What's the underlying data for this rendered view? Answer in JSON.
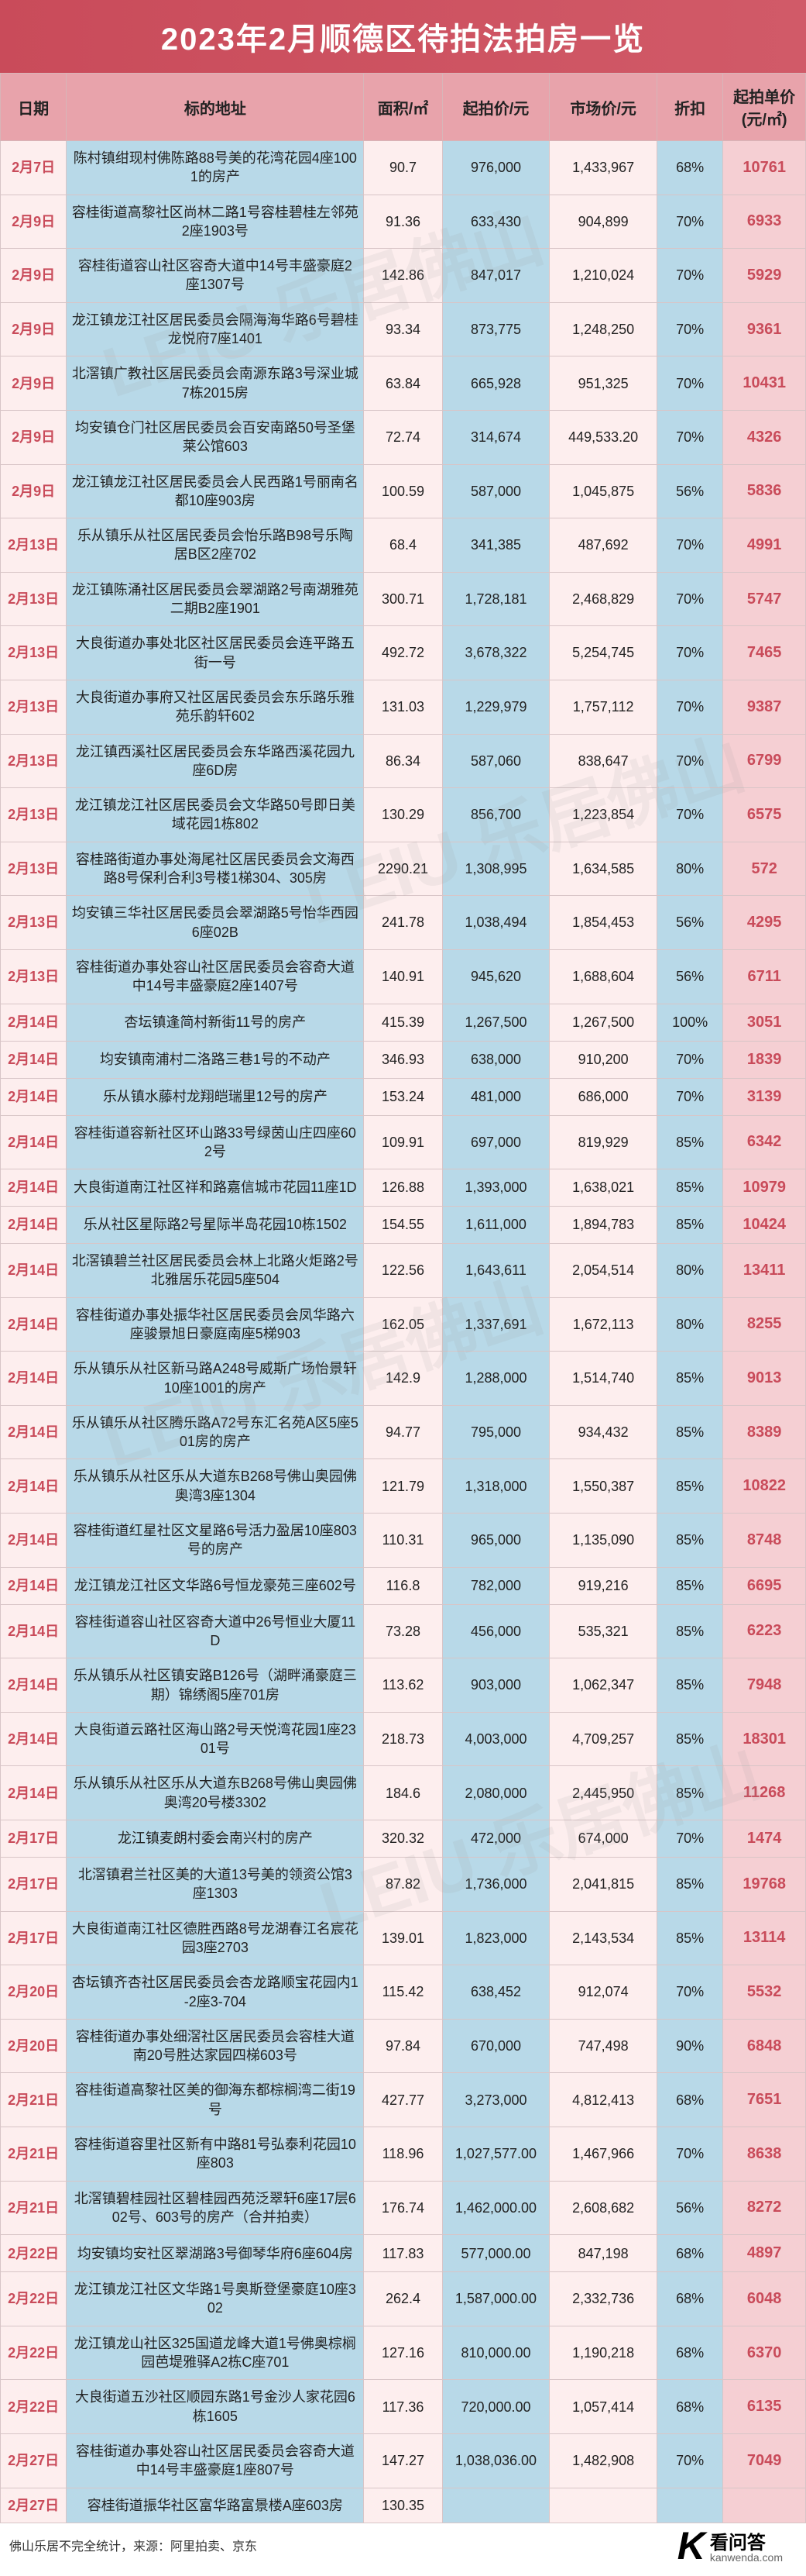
{
  "title": "2023年2月顺德区待拍法拍房一览",
  "colors": {
    "header_bg": "#c94b5a",
    "th_bg": "#e8a3ab",
    "pink_bg": "#fdeeee",
    "blue_bg": "#b8d9e8",
    "unit_bg": "#f5cfd3",
    "accent": "#c94b5a",
    "border": "#d8c5c7"
  },
  "columns": [
    {
      "key": "date",
      "label": "日期"
    },
    {
      "key": "addr",
      "label": "标的地址"
    },
    {
      "key": "area",
      "label": "面积/㎡"
    },
    {
      "key": "start",
      "label": "起拍价/元"
    },
    {
      "key": "market",
      "label": "市场价/元"
    },
    {
      "key": "disc",
      "label": "折扣"
    },
    {
      "key": "unit",
      "label": "起拍单价\n(元/㎡)"
    }
  ],
  "rows": [
    {
      "date": "2月7日",
      "addr": "陈村镇绀现村佛陈路88号美的花湾花园4座1001的房产",
      "area": "90.7",
      "start": "976,000",
      "market": "1,433,967",
      "disc": "68%",
      "unit": "10761"
    },
    {
      "date": "2月9日",
      "addr": "容桂街道高黎社区尚林二路1号容桂碧桂左邻苑2座1903号",
      "area": "91.36",
      "start": "633,430",
      "market": "904,899",
      "disc": "70%",
      "unit": "6933"
    },
    {
      "date": "2月9日",
      "addr": "容桂街道容山社区容奇大道中14号丰盛豪庭2座1307号",
      "area": "142.86",
      "start": "847,017",
      "market": "1,210,024",
      "disc": "70%",
      "unit": "5929"
    },
    {
      "date": "2月9日",
      "addr": "龙江镇龙江社区居民委员会隔海海华路6号碧桂龙悦府7座1401",
      "area": "93.34",
      "start": "873,775",
      "market": "1,248,250",
      "disc": "70%",
      "unit": "9361"
    },
    {
      "date": "2月9日",
      "addr": "北滘镇广教社区居民委员会南源东路3号深业城7栋2015房",
      "area": "63.84",
      "start": "665,928",
      "market": "951,325",
      "disc": "70%",
      "unit": "10431"
    },
    {
      "date": "2月9日",
      "addr": "均安镇仓门社区居民委员会百安南路50号圣堡莱公馆603",
      "area": "72.74",
      "start": "314,674",
      "market": "449,533.20",
      "disc": "70%",
      "unit": "4326"
    },
    {
      "date": "2月9日",
      "addr": "龙江镇龙江社区居民委员会人民西路1号丽南名都10座903房",
      "area": "100.59",
      "start": "587,000",
      "market": "1,045,875",
      "disc": "56%",
      "unit": "5836"
    },
    {
      "date": "2月13日",
      "addr": "乐从镇乐从社区居民委员会怡乐路B98号乐陶居B区2座702",
      "area": "68.4",
      "start": "341,385",
      "market": "487,692",
      "disc": "70%",
      "unit": "4991"
    },
    {
      "date": "2月13日",
      "addr": "龙江镇陈涌社区居民委员会翠湖路2号南湖雅苑二期B2座1901",
      "area": "300.71",
      "start": "1,728,181",
      "market": "2,468,829",
      "disc": "70%",
      "unit": "5747"
    },
    {
      "date": "2月13日",
      "addr": "大良街道办事处北区社区居民委员会连平路五街一号",
      "area": "492.72",
      "start": "3,678,322",
      "market": "5,254,745",
      "disc": "70%",
      "unit": "7465"
    },
    {
      "date": "2月13日",
      "addr": "大良街道办事府又社区居民委员会东乐路乐雅苑乐韵轩602",
      "area": "131.03",
      "start": "1,229,979",
      "market": "1,757,112",
      "disc": "70%",
      "unit": "9387"
    },
    {
      "date": "2月13日",
      "addr": "龙江镇西溪社区居民委员会东华路西溪花园九座6D房",
      "area": "86.34",
      "start": "587,060",
      "market": "838,647",
      "disc": "70%",
      "unit": "6799"
    },
    {
      "date": "2月13日",
      "addr": "龙江镇龙江社区居民委员会文华路50号即日美域花园1栋802",
      "area": "130.29",
      "start": "856,700",
      "market": "1,223,854",
      "disc": "70%",
      "unit": "6575"
    },
    {
      "date": "2月13日",
      "addr": "容桂路街道办事处海尾社区居民委员会文海西路8号保利合利3号楼1梯304、305房",
      "area": "2290.21",
      "start": "1,308,995",
      "market": "1,634,585",
      "disc": "80%",
      "unit": "572"
    },
    {
      "date": "2月13日",
      "addr": "均安镇三华社区居民委员会翠湖路5号怡华西园6座02B",
      "area": "241.78",
      "start": "1,038,494",
      "market": "1,854,453",
      "disc": "56%",
      "unit": "4295"
    },
    {
      "date": "2月13日",
      "addr": "容桂街道办事处容山社区居民委员会容奇大道中14号丰盛豪庭2座1407号",
      "area": "140.91",
      "start": "945,620",
      "market": "1,688,604",
      "disc": "56%",
      "unit": "6711"
    },
    {
      "date": "2月14日",
      "addr": "杏坛镇逢简村新街11号的房产",
      "area": "415.39",
      "start": "1,267,500",
      "market": "1,267,500",
      "disc": "100%",
      "unit": "3051"
    },
    {
      "date": "2月14日",
      "addr": "均安镇南浦村二洛路三巷1号的不动产",
      "area": "346.93",
      "start": "638,000",
      "market": "910,200",
      "disc": "70%",
      "unit": "1839"
    },
    {
      "date": "2月14日",
      "addr": "乐从镇水藤村龙翔皑瑞里12号的房产",
      "area": "153.24",
      "start": "481,000",
      "market": "686,000",
      "disc": "70%",
      "unit": "3139"
    },
    {
      "date": "2月14日",
      "addr": "容桂街道容新社区环山路33号绿茵山庄四座602号",
      "area": "109.91",
      "start": "697,000",
      "market": "819,929",
      "disc": "85%",
      "unit": "6342"
    },
    {
      "date": "2月14日",
      "addr": "大良街道南江社区祥和路嘉信城市花园11座1D",
      "area": "126.88",
      "start": "1,393,000",
      "market": "1,638,021",
      "disc": "85%",
      "unit": "10979"
    },
    {
      "date": "2月14日",
      "addr": "乐从社区星际路2号星际半岛花园10栋1502",
      "area": "154.55",
      "start": "1,611,000",
      "market": "1,894,783",
      "disc": "85%",
      "unit": "10424"
    },
    {
      "date": "2月14日",
      "addr": "北滘镇碧兰社区居民委员会林上北路火炬路2号北雅居乐花园5座504",
      "area": "122.56",
      "start": "1,643,611",
      "market": "2,054,514",
      "disc": "80%",
      "unit": "13411"
    },
    {
      "date": "2月14日",
      "addr": "容桂街道办事处振华社区居民委员会凤华路六座骏景旭日豪庭南座5梯903",
      "area": "162.05",
      "start": "1,337,691",
      "market": "1,672,113",
      "disc": "80%",
      "unit": "8255"
    },
    {
      "date": "2月14日",
      "addr": "乐从镇乐从社区新马路A248号威斯广场怡景轩10座1001的房产",
      "area": "142.9",
      "start": "1,288,000",
      "market": "1,514,740",
      "disc": "85%",
      "unit": "9013"
    },
    {
      "date": "2月14日",
      "addr": "乐从镇乐从社区腾乐路A72号东汇名苑A区5座501房的房产",
      "area": "94.77",
      "start": "795,000",
      "market": "934,432",
      "disc": "85%",
      "unit": "8389"
    },
    {
      "date": "2月14日",
      "addr": "乐从镇乐从社区乐从大道东B268号佛山奥园佛奥湾3座1304",
      "area": "121.79",
      "start": "1,318,000",
      "market": "1,550,387",
      "disc": "85%",
      "unit": "10822"
    },
    {
      "date": "2月14日",
      "addr": "容桂街道红星社区文星路6号活力盈居10座803号的房产",
      "area": "110.31",
      "start": "965,000",
      "market": "1,135,090",
      "disc": "85%",
      "unit": "8748"
    },
    {
      "date": "2月14日",
      "addr": "龙江镇龙江社区文华路6号恒龙豪苑三座602号",
      "area": "116.8",
      "start": "782,000",
      "market": "919,216",
      "disc": "85%",
      "unit": "6695"
    },
    {
      "date": "2月14日",
      "addr": "容桂街道容山社区容奇大道中26号恒业大厦11D",
      "area": "73.28",
      "start": "456,000",
      "market": "535,321",
      "disc": "85%",
      "unit": "6223"
    },
    {
      "date": "2月14日",
      "addr": "乐从镇乐从社区镇安路B126号（湖畔涌豪庭三期）锦绣阁5座701房",
      "area": "113.62",
      "start": "903,000",
      "market": "1,062,347",
      "disc": "85%",
      "unit": "7948"
    },
    {
      "date": "2月14日",
      "addr": "大良街道云路社区海山路2号天悦湾花园1座2301号",
      "area": "218.73",
      "start": "4,003,000",
      "market": "4,709,257",
      "disc": "85%",
      "unit": "18301"
    },
    {
      "date": "2月14日",
      "addr": "乐从镇乐从社区乐从大道东B268号佛山奥园佛奥湾20号楼3302",
      "area": "184.6",
      "start": "2,080,000",
      "market": "2,445,950",
      "disc": "85%",
      "unit": "11268"
    },
    {
      "date": "2月17日",
      "addr": "龙江镇麦朗村委会南兴村的房产",
      "area": "320.32",
      "start": "472,000",
      "market": "674,000",
      "disc": "70%",
      "unit": "1474"
    },
    {
      "date": "2月17日",
      "addr": "北滘镇君兰社区美的大道13号美的领资公馆3座1303",
      "area": "87.82",
      "start": "1,736,000",
      "market": "2,041,815",
      "disc": "85%",
      "unit": "19768"
    },
    {
      "date": "2月17日",
      "addr": "大良街道南江社区德胜西路8号龙湖春江名宸花园3座2703",
      "area": "139.01",
      "start": "1,823,000",
      "market": "2,143,534",
      "disc": "85%",
      "unit": "13114"
    },
    {
      "date": "2月20日",
      "addr": "杏坛镇齐杏社区居民委员会杏龙路顺宝花园内1-2座3-704",
      "area": "115.42",
      "start": "638,452",
      "market": "912,074",
      "disc": "70%",
      "unit": "5532"
    },
    {
      "date": "2月20日",
      "addr": "容桂街道办事处细滘社区居民委员会容桂大道南20号胜达家园四梯603号",
      "area": "97.84",
      "start": "670,000",
      "market": "747,498",
      "disc": "90%",
      "unit": "6848"
    },
    {
      "date": "2月21日",
      "addr": "容桂街道高黎社区美的御海东都棕榈湾二街19号",
      "area": "427.77",
      "start": "3,273,000",
      "market": "4,812,413",
      "disc": "68%",
      "unit": "7651"
    },
    {
      "date": "2月21日",
      "addr": "容桂街道容里社区新有中路81号弘泰利花园10座803",
      "area": "118.96",
      "start": "1,027,577.00",
      "market": "1,467,966",
      "disc": "70%",
      "unit": "8638"
    },
    {
      "date": "2月21日",
      "addr": "北滘镇碧桂园社区碧桂园西苑泛翠轩6座17层602号、603号的房产（合并拍卖）",
      "area": "176.74",
      "start": "1,462,000.00",
      "market": "2,608,682",
      "disc": "56%",
      "unit": "8272"
    },
    {
      "date": "2月22日",
      "addr": "均安镇均安社区翠湖路3号御琴华府6座604房",
      "area": "117.83",
      "start": "577,000.00",
      "market": "847,198",
      "disc": "68%",
      "unit": "4897"
    },
    {
      "date": "2月22日",
      "addr": "龙江镇龙江社区文华路1号奥斯登堡豪庭10座302",
      "area": "262.4",
      "start": "1,587,000.00",
      "market": "2,332,736",
      "disc": "68%",
      "unit": "6048"
    },
    {
      "date": "2月22日",
      "addr": "龙江镇龙山社区325国道龙峰大道1号佛奥棕榈园芭堤雅驿A2栋C座701",
      "area": "127.16",
      "start": "810,000.00",
      "market": "1,190,218",
      "disc": "68%",
      "unit": "6370"
    },
    {
      "date": "2月22日",
      "addr": "大良街道五沙社区顺园东路1号金沙人家花园6栋1605",
      "area": "117.36",
      "start": "720,000.00",
      "market": "1,057,414",
      "disc": "68%",
      "unit": "6135"
    },
    {
      "date": "2月27日",
      "addr": "容桂街道办事处容山社区居民委员会容奇大道中14号丰盛豪庭1座807号",
      "area": "147.27",
      "start": "1,038,036.00",
      "market": "1,482,908",
      "disc": "70%",
      "unit": "7049"
    },
    {
      "date": "2月27日",
      "addr": "容桂街道振华社区富华路富景楼A座603房",
      "area": "130.35",
      "start": "",
      "market": "",
      "disc": "",
      "unit": ""
    }
  ],
  "footer": {
    "source": "佛山乐居不完全统计，来源：阿里拍卖、京东",
    "logo_k": "K",
    "logo_text": "看问答",
    "logo_sub": "kanwenda.com"
  }
}
